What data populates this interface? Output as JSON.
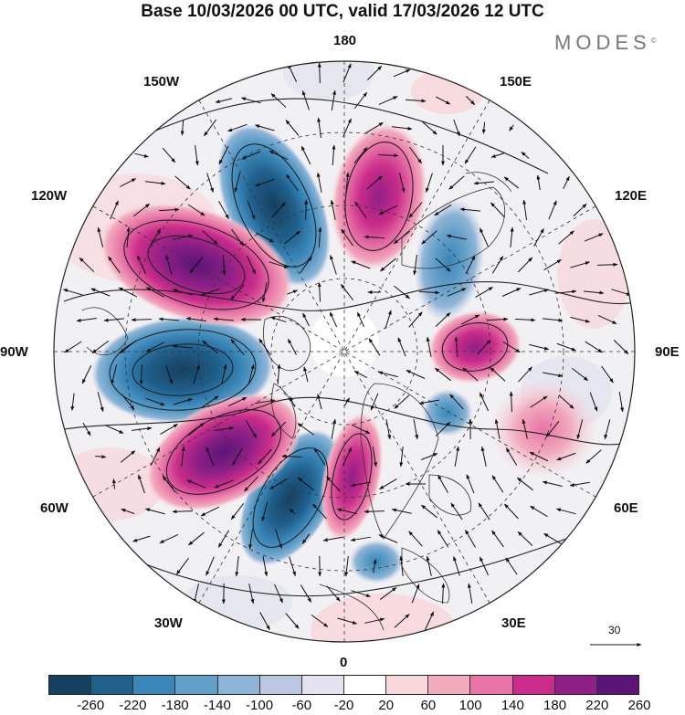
{
  "title": "Base 10/03/2026 00 UTC, valid 17/03/2026 12 UTC",
  "brand": "MODES",
  "brand_mark": "©",
  "longitudes": {
    "top": "180",
    "upper_left": "150W",
    "upper_right": "150E",
    "mid_upper_left": "120W",
    "mid_upper_right": "120E",
    "left": "90W",
    "right": "90E",
    "mid_lower_left": "60W",
    "mid_lower_right": "60E",
    "lower_left": "30W",
    "lower_right": "30E",
    "bottom": "0"
  },
  "wind_scale": {
    "label": "30"
  },
  "colorbar": {
    "ticks": [
      "-260",
      "-220",
      "-180",
      "-140",
      "-100",
      "-60",
      "-20",
      "20",
      "60",
      "100",
      "140",
      "180",
      "220",
      "260"
    ],
    "colors": [
      "#173f5f",
      "#1f5f8b",
      "#3a86b8",
      "#62a0c9",
      "#8fb5d6",
      "#bcc8e2",
      "#e4e4f0",
      "#ffffff",
      "#f8d8dc",
      "#f2aabd",
      "#e874a8",
      "#c92c8a",
      "#8e1f86",
      "#5a1577"
    ]
  },
  "anomalies": [
    {
      "sign": "neg",
      "value": -280
    },
    {
      "sign": "neg",
      "value": -260
    },
    {
      "sign": "neg",
      "value": -250
    },
    {
      "sign": "neg",
      "value": -140
    },
    {
      "sign": "neg",
      "value": -120
    },
    {
      "sign": "neg",
      "value": -100
    },
    {
      "sign": "pos",
      "value": 280
    },
    {
      "sign": "pos",
      "value": 270
    },
    {
      "sign": "pos",
      "value": 200
    },
    {
      "sign": "pos",
      "value": 180
    },
    {
      "sign": "pos",
      "value": 140
    },
    {
      "sign": "pos",
      "value": 100
    }
  ]
}
